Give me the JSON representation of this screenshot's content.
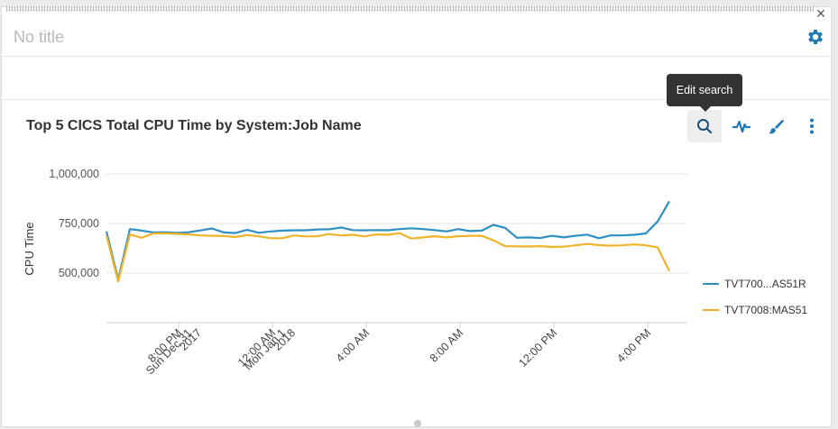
{
  "widget": {
    "title": "No title",
    "tooltip": "Edit search"
  },
  "toolbar": {
    "icons": [
      "search-icon",
      "activity-icon",
      "brush-icon",
      "kebab-menu-icon"
    ],
    "accent": "#1f78b4"
  },
  "chart_data": {
    "type": "line",
    "title": "Top 5 CICS Total CPU Time by System:Job Name",
    "ylabel": "CPU Time",
    "xlabel": "",
    "ylim": [
      300000,
      1000000
    ],
    "yticks": [
      500000,
      750000,
      1000000
    ],
    "ytick_labels": [
      "500,000",
      "750,000",
      "1,000,000"
    ],
    "xtick_labels": [
      [
        "8:00 PM",
        "Sun Dec 31",
        "2017"
      ],
      [
        "12:00 AM",
        "Mon Jan 1",
        "2018"
      ],
      [
        "4:00 AM"
      ],
      [
        "8:00 AM"
      ],
      [
        "12:00 PM"
      ],
      [
        "4:00 PM"
      ]
    ],
    "x_hours": [
      0,
      0.5,
      1,
      1.5,
      2,
      2.5,
      3,
      3.5,
      4,
      4.5,
      5,
      5.5,
      6,
      6.5,
      7,
      7.5,
      8,
      8.5,
      9,
      9.5,
      10,
      10.5,
      11,
      11.5,
      12,
      12.5,
      13,
      13.5,
      14,
      14.5,
      15,
      15.5,
      16,
      16.5,
      17,
      17.5,
      18,
      18.5,
      19,
      19.5,
      20,
      20.5,
      21,
      21.5,
      22,
      22.5,
      23,
      23.5,
      24
    ],
    "x_origin": "Sun Dec 31 2017 4:55 PM",
    "grid": true,
    "legend_position": "right",
    "series": [
      {
        "name": "TVT700...AS51R",
        "color": "#2f8fc4",
        "values": [
          710000,
          467000,
          722000,
          714000,
          705000,
          706000,
          703000,
          706000,
          715000,
          725000,
          705000,
          702000,
          718000,
          703000,
          710000,
          714000,
          716000,
          716000,
          720000,
          721000,
          730000,
          717000,
          716000,
          717000,
          716000,
          722000,
          726000,
          722000,
          717000,
          710000,
          722000,
          712000,
          714000,
          743000,
          728000,
          678000,
          680000,
          677000,
          688000,
          680000,
          688000,
          694000,
          676000,
          690000,
          690000,
          693000,
          700000,
          760000,
          862000
        ]
      },
      {
        "name": "TVT7008:MAS51",
        "color": "#f0b429",
        "values": [
          690000,
          458000,
          695000,
          678000,
          700000,
          700000,
          698000,
          695000,
          690000,
          688000,
          687000,
          682000,
          692000,
          685000,
          676000,
          676000,
          690000,
          685000,
          686000,
          697000,
          690000,
          693000,
          685000,
          695000,
          693000,
          702000,
          674000,
          680000,
          686000,
          680000,
          686000,
          688000,
          688000,
          665000,
          636000,
          635000,
          634000,
          636000,
          632000,
          633000,
          640000,
          647000,
          641000,
          638000,
          640000,
          645000,
          640000,
          630000,
          510000
        ]
      }
    ]
  }
}
